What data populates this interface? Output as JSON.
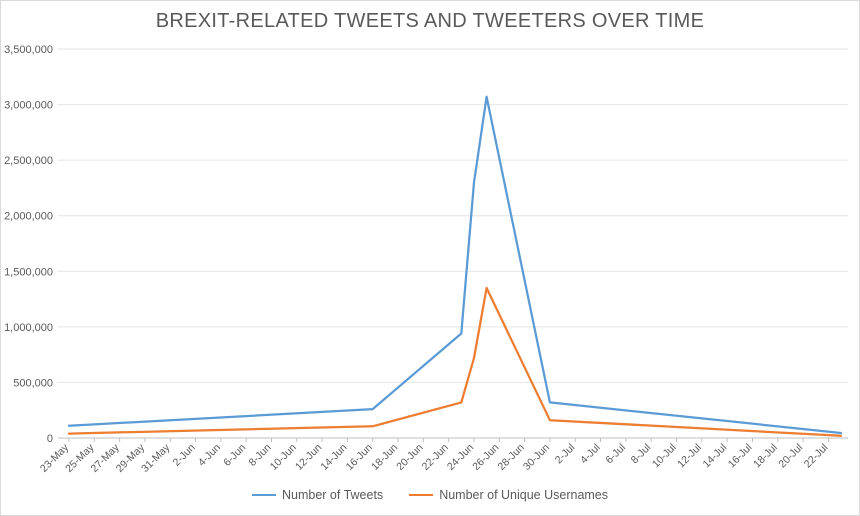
{
  "chart_data": {
    "type": "line",
    "title": "BREXIT-RELATED TWEETS AND TWEETERS OVER TIME",
    "xlabel": "",
    "ylabel": "",
    "ylim": [
      0,
      3500000
    ],
    "yticks": [
      0,
      500000,
      1000000,
      1500000,
      2000000,
      2500000,
      3000000,
      3500000
    ],
    "ytick_labels": [
      "0",
      "500,000",
      "1,000,000",
      "1,500,000",
      "2,000,000",
      "2,500,000",
      "3,000,000",
      "3,500,000"
    ],
    "xtick_labels": [
      "23-May",
      "25-May",
      "27-May",
      "29-May",
      "31-May",
      "2-Jun",
      "4-Jun",
      "6-Jun",
      "8-Jun",
      "10-Jun",
      "12-Jun",
      "14-Jun",
      "16-Jun",
      "18-Jun",
      "20-Jun",
      "22-Jun",
      "24-Jun",
      "26-Jun",
      "28-Jun",
      "30-Jun",
      "2-Jul",
      "4-Jul",
      "6-Jul",
      "8-Jul",
      "10-Jul",
      "12-Jul",
      "14-Jul",
      "16-Jul",
      "18-Jul",
      "20-Jul",
      "22-Jul"
    ],
    "x": [
      "2016-05-23",
      "2016-06-16",
      "2016-06-23",
      "2016-06-24",
      "2016-06-25",
      "2016-06-30",
      "2016-07-23"
    ],
    "series": [
      {
        "name": "Number of Tweets",
        "color": "#5b9bd5",
        "values": [
          110000,
          260000,
          940000,
          2300000,
          3070000,
          320000,
          45000
        ]
      },
      {
        "name": "Number of Unique Usernames",
        "color": "#ed7d31",
        "values": [
          40000,
          105000,
          320000,
          720000,
          1350000,
          160000,
          20000
        ]
      }
    ],
    "grid": true,
    "legend_position": "bottom"
  }
}
